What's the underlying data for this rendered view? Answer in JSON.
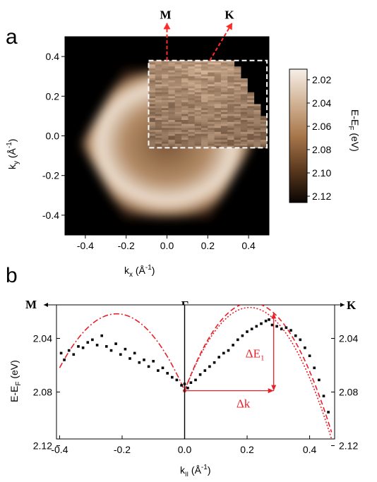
{
  "panel_a": {
    "label": "a",
    "direction_labels": {
      "m": "M",
      "k": "K"
    },
    "xlabel_main": "k",
    "xlabel_sub": "x",
    "xlabel_unit": " (Å",
    "xlabel_exp": "-1",
    "xlabel_close": ")",
    "ylabel_main": "k",
    "ylabel_sub": "y",
    "ylabel_unit": " (Å",
    "ylabel_exp": "-1",
    "ylabel_close": ")",
    "colorbar_label_main": "E-E",
    "colorbar_label_sub": "F",
    "colorbar_label_unit": " (eV)",
    "colorbar_ticks": [
      "2.02",
      "2.04",
      "2.06",
      "2.08",
      "2.10",
      "2.12"
    ],
    "colors": {
      "background": "#000000",
      "hexagon_light": "#e6d8c8",
      "hexagon_mid": "#b98e63",
      "box": "#ffffff",
      "arrow": "#ff2a2a"
    }
  },
  "panel_b": {
    "label": "b",
    "left_label": "M",
    "center_label": "Γ",
    "right_label": "K",
    "ylabel_main": "E-E",
    "ylabel_sub": "F",
    "ylabel_unit": " (eV)",
    "xlabel_main": "k",
    "xlabel_sub": "II",
    "xlabel_unit": " (Å",
    "xlabel_exp": "-1",
    "xlabel_close": ")",
    "delta_e_main": "ΔE",
    "delta_e_sub": "1",
    "delta_k": "Δk",
    "colors": {
      "fit": "#e8202a",
      "points": "#000000"
    }
  },
  "chart_data": [
    {
      "type": "heatmap",
      "xlabel": "kx (Å-1)",
      "ylabel": "ky (Å-1)",
      "xlim": [
        -0.5,
        0.5
      ],
      "ylim": [
        -0.5,
        0.5
      ],
      "xticks": [
        -0.4,
        -0.2,
        0.0,
        0.2,
        0.4
      ],
      "yticks": [
        0.4,
        0.2,
        0.0,
        -0.2,
        -0.4
      ],
      "colorbar_label": "E-EF (eV)",
      "colorbar_range": [
        2.02,
        2.12
      ],
      "hexagon_radius": 0.42,
      "hexagon_ring_radius": 0.33,
      "data_box": {
        "kx": [
          -0.09,
          0.49
        ],
        "ky": [
          -0.06,
          0.38
        ]
      },
      "arrows": [
        {
          "label": "M",
          "from": [
            0.0,
            0.38
          ],
          "to": [
            0.0,
            0.57
          ]
        },
        {
          "label": "K",
          "from": [
            0.21,
            0.38
          ],
          "to": [
            0.32,
            0.57
          ]
        }
      ]
    },
    {
      "type": "scatter",
      "xlabel": "kII (Å-1)",
      "ylabel": "E-EF (eV)",
      "xlim": [
        -0.41,
        0.48
      ],
      "ylim": [
        2.115,
        2.015
      ],
      "xticks": [
        -0.4,
        -0.2,
        0.0,
        0.2,
        0.4
      ],
      "yticks": [
        2.04,
        2.08,
        2.12
      ],
      "series": [
        {
          "x": [
            -0.395,
            -0.385,
            -0.37,
            -0.355,
            -0.34,
            -0.325,
            -0.31,
            -0.295,
            -0.28,
            -0.265,
            -0.25,
            -0.235,
            -0.22,
            -0.205,
            -0.19,
            -0.175,
            -0.16,
            -0.145,
            -0.13,
            -0.115,
            -0.1,
            -0.085,
            -0.07,
            -0.055,
            -0.04,
            -0.025,
            -0.01,
            0.0,
            0.01,
            0.02,
            0.035,
            0.05,
            0.065,
            0.08,
            0.095,
            0.11,
            0.125,
            0.14,
            0.155,
            0.17,
            0.185,
            0.2,
            0.215,
            0.23,
            0.245,
            0.26,
            0.27,
            0.28,
            0.295,
            0.31,
            0.325,
            0.34,
            0.355,
            0.37,
            0.385,
            0.4,
            0.415,
            0.43,
            0.445,
            0.46
          ],
          "y": [
            2.051,
            2.056,
            2.049,
            2.052,
            2.046,
            2.047,
            2.043,
            2.041,
            2.045,
            2.038,
            2.046,
            2.049,
            2.044,
            2.052,
            2.048,
            2.055,
            2.051,
            2.058,
            2.056,
            2.061,
            2.057,
            2.064,
            2.062,
            2.066,
            2.069,
            2.071,
            2.075,
            2.074,
            2.077,
            2.073,
            2.071,
            2.067,
            2.064,
            2.061,
            2.058,
            2.054,
            2.051,
            2.049,
            2.045,
            2.041,
            2.038,
            2.035,
            2.033,
            2.031,
            2.029,
            2.027,
            2.026,
            2.03,
            2.031,
            2.033,
            2.032,
            2.034,
            2.038,
            2.041,
            2.047,
            2.053,
            2.062,
            2.071,
            2.083,
            2.095
          ]
        }
      ],
      "fits": [
        {
          "style": "dash-dot",
          "x": [
            -0.4,
            -0.27,
            0.0
          ],
          "y": [
            2.062,
            2.025,
            2.079
          ]
        },
        {
          "style": "dashed",
          "x": [
            0.0,
            0.285,
            0.47
          ],
          "y": [
            2.079,
            2.021,
            2.11
          ]
        },
        {
          "style": "dotted",
          "x": [
            0.0,
            0.3,
            0.47
          ],
          "y": [
            2.079,
            2.029,
            2.115
          ]
        }
      ],
      "annotations": [
        {
          "text": "ΔE1",
          "kind": "vertical",
          "x": 0.285,
          "y": [
            2.079,
            2.021
          ]
        },
        {
          "text": "Δk",
          "kind": "horizontal",
          "y": 2.079,
          "x": [
            0.0,
            0.285
          ]
        }
      ]
    }
  ]
}
